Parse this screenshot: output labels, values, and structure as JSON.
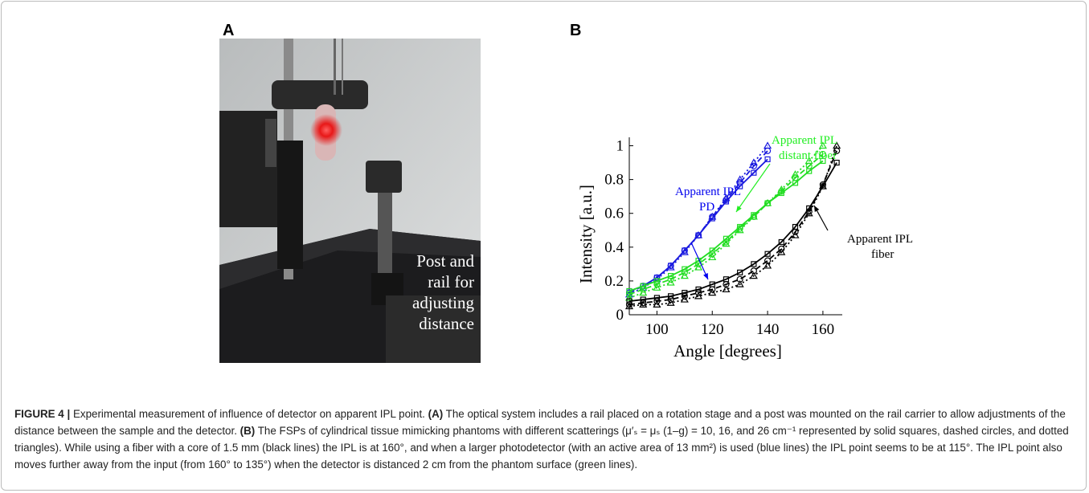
{
  "panel_a": {
    "label": "A",
    "annotation": [
      "Post and",
      "rail for",
      "adjusting",
      "distance"
    ]
  },
  "panel_b": {
    "label": "B"
  },
  "chart_data": {
    "type": "line",
    "xlabel": "Angle [degrees]",
    "ylabel": "Intensity [a.u.]",
    "xlim": [
      90,
      167
    ],
    "ylim": [
      0,
      1.05
    ],
    "xticks": [
      100,
      120,
      140,
      160
    ],
    "yticks": [
      0,
      0.2,
      0.4,
      0.6,
      0.8,
      1
    ],
    "annotations": [
      {
        "lines": [
          "Apparent IPL",
          "PD"
        ],
        "color": "#0000ee"
      },
      {
        "lines": [
          "Apparent IPL",
          "distant fiber"
        ],
        "color": "#22ee22"
      },
      {
        "lines": [
          "Apparent IPL",
          "fiber"
        ],
        "color": "#000000"
      }
    ],
    "series": [
      {
        "color": "#1a1adf",
        "dash": "solid",
        "marker": "square",
        "x": [
          90,
          95,
          100,
          105,
          110,
          115,
          120,
          125,
          130,
          135,
          140
        ],
        "values": [
          0.14,
          0.17,
          0.22,
          0.29,
          0.38,
          0.47,
          0.57,
          0.67,
          0.76,
          0.84,
          0.92
        ]
      },
      {
        "color": "#1a1adf",
        "dash": "dashed",
        "marker": "circle",
        "x": [
          90,
          95,
          100,
          105,
          110,
          115,
          120,
          125,
          130,
          135,
          140
        ],
        "values": [
          0.13,
          0.17,
          0.22,
          0.29,
          0.38,
          0.47,
          0.58,
          0.68,
          0.78,
          0.88,
          0.97
        ]
      },
      {
        "color": "#1a1adf",
        "dash": "dotted",
        "marker": "triangle",
        "x": [
          90,
          95,
          100,
          105,
          110,
          115,
          120,
          125,
          130,
          135,
          140
        ],
        "values": [
          0.12,
          0.16,
          0.21,
          0.28,
          0.37,
          0.47,
          0.58,
          0.69,
          0.8,
          0.9,
          1.0
        ]
      },
      {
        "color": "#22dd22",
        "dash": "solid",
        "marker": "square",
        "x": [
          90,
          95,
          100,
          105,
          110,
          115,
          120,
          125,
          130,
          135,
          140,
          145,
          150,
          155,
          160
        ],
        "values": [
          0.14,
          0.17,
          0.2,
          0.23,
          0.27,
          0.32,
          0.38,
          0.45,
          0.52,
          0.59,
          0.66,
          0.72,
          0.78,
          0.85,
          0.91
        ]
      },
      {
        "color": "#22dd22",
        "dash": "dashed",
        "marker": "circle",
        "x": [
          90,
          95,
          100,
          105,
          110,
          115,
          120,
          125,
          130,
          135,
          140,
          145,
          150,
          155,
          160
        ],
        "values": [
          0.12,
          0.15,
          0.18,
          0.21,
          0.25,
          0.3,
          0.36,
          0.43,
          0.51,
          0.58,
          0.66,
          0.73,
          0.81,
          0.88,
          0.95
        ]
      },
      {
        "color": "#22dd22",
        "dash": "dotted",
        "marker": "triangle",
        "x": [
          90,
          95,
          100,
          105,
          110,
          115,
          120,
          125,
          130,
          135,
          140,
          145,
          150,
          155,
          160
        ],
        "values": [
          0.1,
          0.13,
          0.16,
          0.19,
          0.23,
          0.28,
          0.34,
          0.42,
          0.5,
          0.58,
          0.66,
          0.74,
          0.83,
          0.91,
          1.0
        ]
      },
      {
        "color": "#000000",
        "dash": "solid",
        "marker": "square",
        "x": [
          90,
          95,
          100,
          105,
          110,
          115,
          120,
          125,
          130,
          135,
          140,
          145,
          150,
          155,
          160,
          165
        ],
        "values": [
          0.08,
          0.09,
          0.1,
          0.11,
          0.13,
          0.15,
          0.18,
          0.21,
          0.25,
          0.3,
          0.36,
          0.43,
          0.52,
          0.63,
          0.76,
          0.9
        ]
      },
      {
        "color": "#000000",
        "dash": "dashed",
        "marker": "circle",
        "x": [
          90,
          95,
          100,
          105,
          110,
          115,
          120,
          125,
          130,
          135,
          140,
          145,
          150,
          155,
          160,
          165
        ],
        "values": [
          0.06,
          0.07,
          0.08,
          0.09,
          0.11,
          0.13,
          0.15,
          0.18,
          0.21,
          0.26,
          0.32,
          0.39,
          0.49,
          0.61,
          0.77,
          0.97
        ]
      },
      {
        "color": "#000000",
        "dash": "dotted",
        "marker": "triangle",
        "x": [
          90,
          95,
          100,
          105,
          110,
          115,
          120,
          125,
          130,
          135,
          140,
          145,
          150,
          155,
          160,
          165
        ],
        "values": [
          0.05,
          0.06,
          0.06,
          0.07,
          0.09,
          0.11,
          0.13,
          0.15,
          0.18,
          0.23,
          0.29,
          0.37,
          0.47,
          0.6,
          0.76,
          1.0
        ]
      }
    ]
  },
  "caption": [
    {
      "text": "FIGURE 4 | ",
      "bold": true
    },
    {
      "text": "Experimental measurement of influence of detector on apparent IPL point. ",
      "bold": false
    },
    {
      "text": "(A)",
      "bold": true
    },
    {
      "text": " The optical system includes a rail placed on a rotation stage and a post was mounted on the rail carrier to allow adjustments of the distance between the sample and the detector. ",
      "bold": false
    },
    {
      "text": "(B)",
      "bold": true
    },
    {
      "text": " The FSPs of cylindrical tissue mimicking phantoms with different scatterings (μ′ₛ = μₛ (1–g) = 10, 16, and 26 cm⁻¹ represented by solid squares, dashed circles, and dotted triangles). While using a fiber with a core of 1.5 mm (black lines) the IPL is at 160°, and when a larger photodetector (with an active area of 13 mm²) is used (blue lines) the IPL point seems to be at 115°. The IPL point also moves further away from the input (from 160° to 135°) when the detector is distanced 2 cm from the phantom surface (green lines).",
      "bold": false
    }
  ]
}
